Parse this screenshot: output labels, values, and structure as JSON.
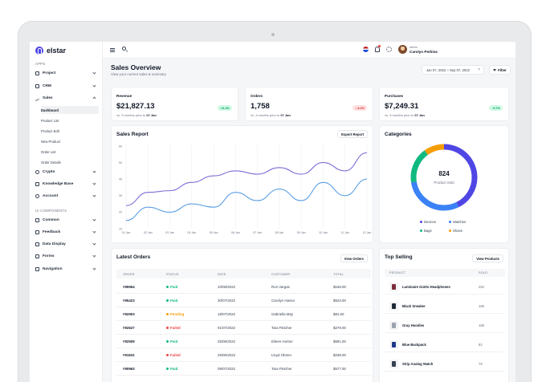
{
  "brand": "elstar",
  "sidebar": {
    "apps_label": "APPS",
    "ui_label": "UI COMPONENTS",
    "items": [
      {
        "label": "Project",
        "icon": "project-icon"
      },
      {
        "label": "CRM",
        "icon": "crm-icon"
      },
      {
        "label": "Sales",
        "icon": "sales-icon"
      },
      {
        "label": "Crypto",
        "icon": "crypto-icon"
      },
      {
        "label": "Knowledge Base",
        "icon": "book-icon"
      },
      {
        "label": "Account",
        "icon": "account-icon"
      }
    ],
    "sales_sub": [
      "Dashboard",
      "Product List",
      "Product Edit",
      "New Product",
      "Order List",
      "Order Details"
    ],
    "ui_items": [
      {
        "label": "Common",
        "icon": "common-icon"
      },
      {
        "label": "Feedback",
        "icon": "feedback-icon"
      },
      {
        "label": "Data Display",
        "icon": "data-display-icon"
      },
      {
        "label": "Forms",
        "icon": "forms-icon"
      },
      {
        "label": "Navigation",
        "icon": "navigation-icon"
      }
    ]
  },
  "topbar": {
    "role": "admin",
    "user": "Carolyn Perkins"
  },
  "header": {
    "title": "Sales Overview",
    "subtitle": "View your current sales & summary",
    "date_range": "Jan 07, 2022 ~ Sep 07, 2022",
    "filter": "Filter"
  },
  "stats": [
    {
      "label": "Revenue",
      "value": "$21,827.13",
      "compare": "vs. 3 months prior to",
      "date": "07 Jan",
      "change": "11.4%",
      "trend": "up"
    },
    {
      "label": "Orders",
      "value": "1,758",
      "compare": "vs. 3 months prior to",
      "date": "07 Jan",
      "change": "-3.2%",
      "trend": "down"
    },
    {
      "label": "Purchases",
      "value": "$7,249.31",
      "compare": "vs. 3 months prior to",
      "date": "07 Jan",
      "change": "5.7%",
      "trend": "up"
    }
  ],
  "sales_report": {
    "title": "Sales Report",
    "export": "Export Report"
  },
  "chart_data": [
    {
      "type": "line",
      "title": "Sales Report",
      "x": [
        "01 Jan",
        "02 Jan",
        "03 Jan",
        "04 Jan",
        "05 Jan",
        "06 Jan",
        "07 Jan",
        "08 Jan",
        "09 Jan",
        "10 Jan",
        "11 Jan",
        "12 Jan"
      ],
      "yticks": [
        10,
        20,
        30,
        40,
        50,
        60
      ],
      "ylim": [
        10,
        60
      ],
      "grid": true,
      "series": [
        {
          "values": [
            24,
            32,
            33,
            38,
            42,
            45,
            43,
            47,
            43,
            50,
            45,
            56
          ],
          "color": "#7c6fd6"
        },
        {
          "values": [
            15,
            23,
            20,
            25,
            23,
            32,
            27,
            34,
            27,
            38,
            30,
            40
          ],
          "color": "#5b9ee3"
        }
      ]
    },
    {
      "type": "pie",
      "title": "Categories",
      "center_value": "824",
      "center_label": "Product Sold",
      "slices": [
        {
          "label": "Devices",
          "value": 351,
          "color": "#4f46e5"
        },
        {
          "label": "Watches",
          "value": 246,
          "color": "#3b82f6"
        },
        {
          "label": "Bags",
          "value": 144,
          "color": "#10b981"
        },
        {
          "label": "Shoes",
          "value": 83,
          "color": "#f59e0b"
        }
      ]
    }
  ],
  "orders": {
    "title": "Latest Orders",
    "view": "View Orders",
    "columns": [
      "ORDER",
      "STATUS",
      "DATE",
      "CUSTOMER",
      "TOTAL"
    ],
    "rows": [
      {
        "id": "#95954",
        "status": "Paid",
        "date": "10/08/2022",
        "customer": "Ron Vargas",
        "total": "$168.00"
      },
      {
        "id": "#95423",
        "status": "Paid",
        "date": "30/07/2022",
        "customer": "Carolyn Hanso",
        "total": "$523.00"
      },
      {
        "id": "#92903",
        "status": "Pending",
        "date": "18/07/2022",
        "customer": "Gabriella May",
        "total": "$81.00"
      },
      {
        "id": "#92627",
        "status": "Failed",
        "date": "01/07/2022",
        "customer": "Tara Fletcher",
        "total": "$279.00"
      },
      {
        "id": "#92509",
        "status": "Paid",
        "date": "25/06/2022",
        "customer": "Eileen Horton",
        "total": "$591.00"
      },
      {
        "id": "#91631",
        "status": "Failed",
        "date": "25/06/2022",
        "customer": "Lloyd Obrien",
        "total": "$238.00"
      },
      {
        "id": "#90963",
        "status": "Paid",
        "date": "09/07/2022",
        "customer": "Tara Fletcher",
        "total": "$577.00"
      }
    ],
    "status_colors": {
      "Paid": "#10b981",
      "Pending": "#f59e0b",
      "Failed": "#ef4444"
    }
  },
  "top_selling": {
    "title": "Top Selling",
    "view": "View Products",
    "columns": [
      "PRODUCT",
      "SOLD"
    ],
    "rows": [
      {
        "name": "Luminaire Giotto Headphones",
        "sold": "252",
        "color": "#7c2d3a"
      },
      {
        "name": "Black Sneaker",
        "sold": "186",
        "color": "#1f2937"
      },
      {
        "name": "Gray Hoodies",
        "sold": "166",
        "color": "#9ca3af"
      },
      {
        "name": "Blue Backpack",
        "sold": "82",
        "color": "#1e3a8a"
      },
      {
        "name": "Strip Analog Watch",
        "sold": "79",
        "color": "#374151"
      }
    ]
  }
}
